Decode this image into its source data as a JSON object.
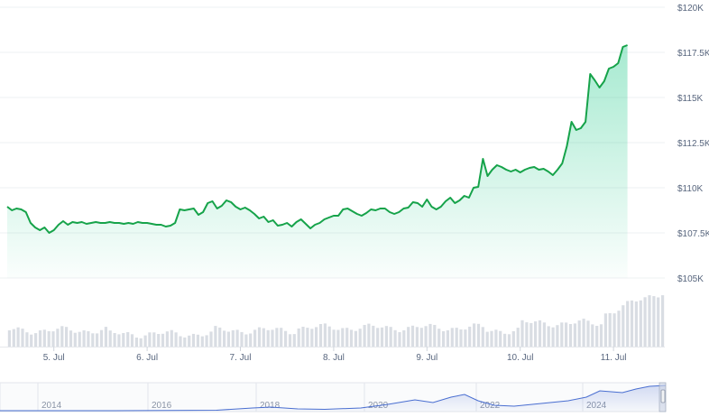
{
  "chart_data": {
    "type": "area",
    "title": "",
    "xlabel": "",
    "ylabel": "",
    "currency_prefix": "$",
    "ylim": [
      105000,
      120000
    ],
    "y_ticks": [
      {
        "value": 105000,
        "label": "$105K"
      },
      {
        "value": 107500,
        "label": "$107.5K"
      },
      {
        "value": 110000,
        "label": "$110K"
      },
      {
        "value": 112500,
        "label": "$112.5K"
      },
      {
        "value": 115000,
        "label": "$115K"
      },
      {
        "value": 117500,
        "label": "$117.5K"
      },
      {
        "value": 120000,
        "label": "$120K"
      }
    ],
    "x_ticks": [
      {
        "t": 1.0,
        "label": "5. Jul"
      },
      {
        "t": 2.0,
        "label": "6. Jul"
      },
      {
        "t": 3.0,
        "label": "7. Jul"
      },
      {
        "t": 4.0,
        "label": "8. Jul"
      },
      {
        "t": 5.0,
        "label": "9. Jul"
      },
      {
        "t": 6.0,
        "label": "10. Jul"
      },
      {
        "t": 7.0,
        "label": "11. Jul"
      }
    ],
    "x_range": [
      0.5,
      7.55
    ],
    "line_color": "#16a34a",
    "fill_color": "#16c784",
    "volume_color": "#d9dde3",
    "series": [
      {
        "points": [
          [
            0.5,
            108950
          ],
          [
            0.55,
            108750
          ],
          [
            0.6,
            108850
          ],
          [
            0.65,
            108800
          ],
          [
            0.7,
            108650
          ],
          [
            0.75,
            108050
          ],
          [
            0.8,
            107800
          ],
          [
            0.85,
            107650
          ],
          [
            0.9,
            107800
          ],
          [
            0.95,
            107500
          ],
          [
            1.0,
            107650
          ],
          [
            1.05,
            107950
          ],
          [
            1.1,
            108150
          ],
          [
            1.15,
            107950
          ],
          [
            1.2,
            108100
          ],
          [
            1.25,
            108050
          ],
          [
            1.3,
            108100
          ],
          [
            1.35,
            108000
          ],
          [
            1.4,
            108050
          ],
          [
            1.45,
            108100
          ],
          [
            1.5,
            108050
          ],
          [
            1.55,
            108050
          ],
          [
            1.6,
            108100
          ],
          [
            1.65,
            108050
          ],
          [
            1.7,
            108050
          ],
          [
            1.75,
            108000
          ],
          [
            1.8,
            108050
          ],
          [
            1.85,
            108000
          ],
          [
            1.9,
            108100
          ],
          [
            1.95,
            108050
          ],
          [
            2.0,
            108050
          ],
          [
            2.05,
            108000
          ],
          [
            2.1,
            107950
          ],
          [
            2.15,
            107950
          ],
          [
            2.2,
            107850
          ],
          [
            2.25,
            107900
          ],
          [
            2.3,
            108050
          ],
          [
            2.35,
            108800
          ],
          [
            2.4,
            108750
          ],
          [
            2.45,
            108800
          ],
          [
            2.5,
            108850
          ],
          [
            2.55,
            108500
          ],
          [
            2.6,
            108650
          ],
          [
            2.65,
            109150
          ],
          [
            2.7,
            109250
          ],
          [
            2.75,
            108850
          ],
          [
            2.8,
            109000
          ],
          [
            2.85,
            109300
          ],
          [
            2.9,
            109200
          ],
          [
            2.95,
            108950
          ],
          [
            3.0,
            108800
          ],
          [
            3.05,
            108900
          ],
          [
            3.1,
            108750
          ],
          [
            3.15,
            108550
          ],
          [
            3.2,
            108300
          ],
          [
            3.25,
            108400
          ],
          [
            3.3,
            108100
          ],
          [
            3.35,
            108200
          ],
          [
            3.4,
            107900
          ],
          [
            3.45,
            107950
          ],
          [
            3.5,
            108050
          ],
          [
            3.55,
            107850
          ],
          [
            3.6,
            108100
          ],
          [
            3.65,
            108250
          ],
          [
            3.7,
            108000
          ],
          [
            3.75,
            107750
          ],
          [
            3.8,
            107950
          ],
          [
            3.85,
            108050
          ],
          [
            3.9,
            108250
          ],
          [
            3.95,
            108350
          ],
          [
            4.0,
            108450
          ],
          [
            4.05,
            108450
          ],
          [
            4.1,
            108800
          ],
          [
            4.15,
            108850
          ],
          [
            4.2,
            108700
          ],
          [
            4.25,
            108550
          ],
          [
            4.3,
            108450
          ],
          [
            4.35,
            108600
          ],
          [
            4.4,
            108800
          ],
          [
            4.45,
            108750
          ],
          [
            4.5,
            108850
          ],
          [
            4.55,
            108850
          ],
          [
            4.6,
            108650
          ],
          [
            4.65,
            108550
          ],
          [
            4.7,
            108650
          ],
          [
            4.75,
            108850
          ],
          [
            4.8,
            108900
          ],
          [
            4.85,
            109200
          ],
          [
            4.9,
            109150
          ],
          [
            4.95,
            108950
          ],
          [
            5.0,
            109350
          ],
          [
            5.05,
            108950
          ],
          [
            5.1,
            108800
          ],
          [
            5.15,
            108950
          ],
          [
            5.2,
            109250
          ],
          [
            5.25,
            109450
          ],
          [
            5.3,
            109150
          ],
          [
            5.35,
            109300
          ],
          [
            5.4,
            109550
          ],
          [
            5.45,
            109450
          ],
          [
            5.5,
            110000
          ],
          [
            5.55,
            110050
          ],
          [
            5.6,
            111600
          ],
          [
            5.65,
            110650
          ],
          [
            5.7,
            111000
          ],
          [
            5.75,
            111250
          ],
          [
            5.8,
            111150
          ],
          [
            5.85,
            111000
          ],
          [
            5.9,
            110900
          ],
          [
            5.95,
            111000
          ],
          [
            6.0,
            110850
          ],
          [
            6.05,
            111000
          ],
          [
            6.1,
            111100
          ],
          [
            6.15,
            111150
          ],
          [
            6.2,
            111000
          ],
          [
            6.25,
            111050
          ],
          [
            6.3,
            110900
          ],
          [
            6.35,
            110700
          ],
          [
            6.4,
            111000
          ],
          [
            6.45,
            111350
          ],
          [
            6.5,
            112300
          ],
          [
            6.55,
            113650
          ],
          [
            6.6,
            113200
          ],
          [
            6.65,
            113300
          ],
          [
            6.7,
            113650
          ],
          [
            6.75,
            116300
          ],
          [
            6.8,
            115950
          ],
          [
            6.85,
            115550
          ],
          [
            6.9,
            115900
          ],
          [
            6.95,
            116600
          ],
          [
            7.0,
            116700
          ],
          [
            7.05,
            116900
          ],
          [
            7.1,
            117800
          ],
          [
            7.15,
            117900
          ]
        ]
      }
    ],
    "navigator": {
      "x_ticks": [
        "2014",
        "2016",
        "2018",
        "2020",
        "2022",
        "2024"
      ]
    }
  }
}
